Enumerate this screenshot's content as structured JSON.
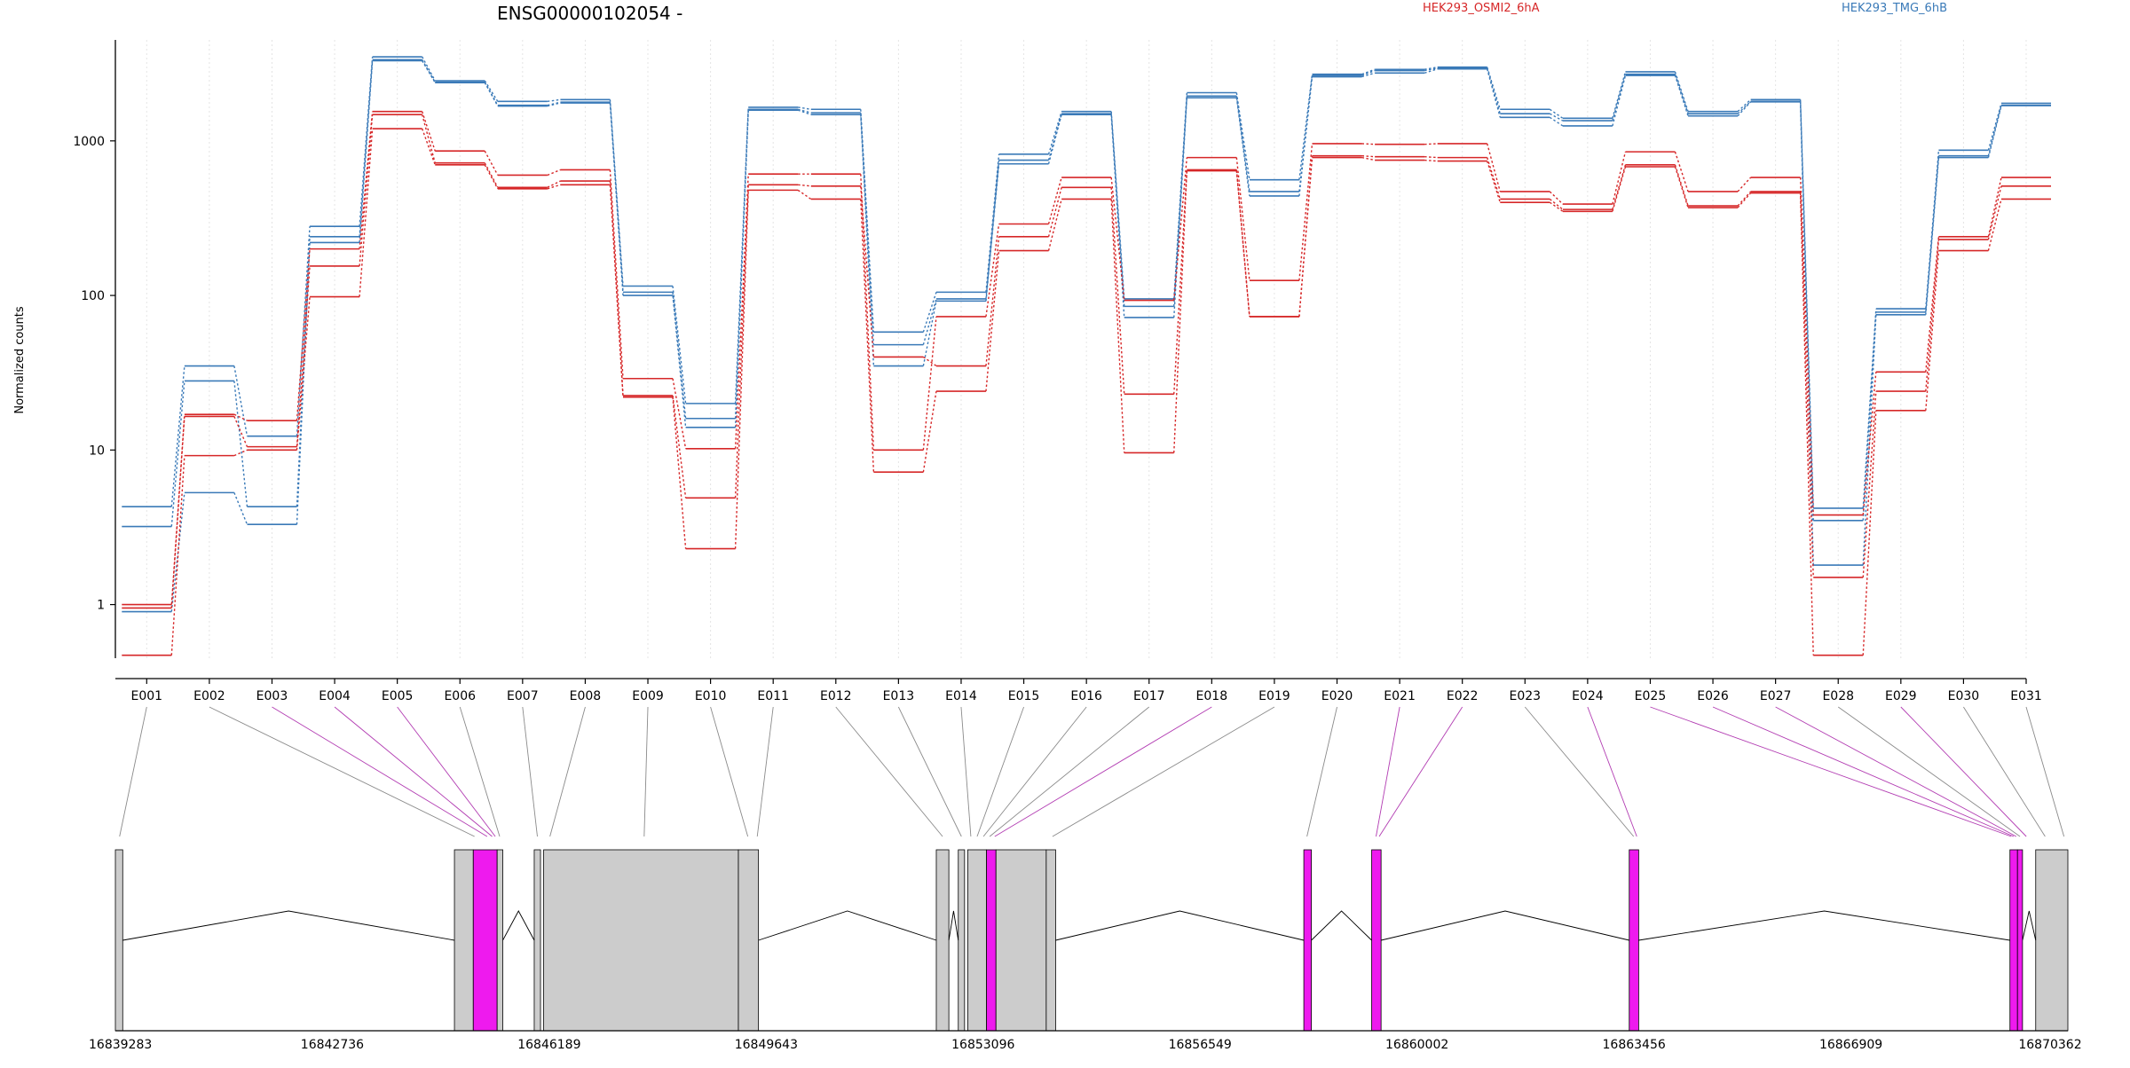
{
  "chart_data": {
    "type": "line",
    "title": "ENSG00000102054 -",
    "ylabel": "Normalized counts",
    "xlabel": "",
    "yscale": "log",
    "ylim": [
      0.45,
      4500
    ],
    "yticks": [
      1,
      10,
      100,
      1000
    ],
    "ytick_labels": [
      "1",
      "10",
      "100",
      "1000"
    ],
    "grid": "vertical dotted",
    "categories": [
      "E001",
      "E002",
      "E003",
      "E004",
      "E005",
      "E006",
      "E007",
      "E008",
      "E009",
      "E010",
      "E011",
      "E012",
      "E013",
      "E014",
      "E015",
      "E016",
      "E017",
      "E018",
      "E019",
      "E020",
      "E021",
      "E022",
      "E023",
      "E024",
      "E025",
      "E026",
      "E027",
      "E028",
      "E029",
      "E030",
      "E031"
    ],
    "legend": [
      {
        "name": "HEK293_OSMI2_6hA",
        "color": "#d62728"
      },
      {
        "name": "HEK293_TMG_6hB",
        "color": "#3a7ab8"
      }
    ],
    "series": [
      {
        "group": "HEK293_TMG_6hB",
        "color": "#3a7ab8",
        "values": [
          4.3,
          35,
          12.3,
          280,
          3500,
          2450,
          1800,
          1850,
          115,
          20,
          1650,
          1600,
          58,
          105,
          820,
          1550,
          95,
          2050,
          560,
          2700,
          2900,
          3000,
          1600,
          1400,
          2800,
          1550,
          1850,
          4.2,
          82,
          870,
          1750
        ]
      },
      {
        "group": "HEK293_TMG_6hB",
        "color": "#3a7ab8",
        "values": [
          3.2,
          28,
          4.3,
          240,
          3350,
          2400,
          1700,
          1780,
          105,
          16,
          1600,
          1520,
          48,
          95,
          750,
          1500,
          85,
          1950,
          470,
          2650,
          2850,
          2950,
          1500,
          1350,
          2700,
          1500,
          1800,
          3.5,
          78,
          800,
          1700
        ]
      },
      {
        "group": "HEK293_TMG_6hB",
        "color": "#3a7ab8",
        "values": [
          0.9,
          5.3,
          3.3,
          220,
          3300,
          2380,
          1680,
          1760,
          100,
          14,
          1580,
          1480,
          35,
          92,
          710,
          1480,
          72,
          1900,
          440,
          2600,
          2750,
          2920,
          1420,
          1250,
          2650,
          1450,
          1790,
          1.8,
          75,
          780,
          1690
        ]
      },
      {
        "group": "HEK293_OSMI2_6hA",
        "color": "#d62728",
        "values": [
          1.0,
          17,
          15.5,
          200,
          1550,
          860,
          600,
          650,
          29,
          10.2,
          610,
          610,
          10,
          73,
          290,
          580,
          93,
          780,
          125,
          960,
          950,
          960,
          470,
          390,
          850,
          470,
          580,
          3.8,
          32,
          240,
          580
        ]
      },
      {
        "group": "HEK293_OSMI2_6hA",
        "color": "#d62728",
        "values": [
          0.95,
          16.5,
          10.5,
          155,
          1480,
          720,
          500,
          550,
          22.5,
          4.9,
          520,
          510,
          40,
          35,
          240,
          500,
          23,
          650,
          73,
          800,
          790,
          780,
          420,
          360,
          700,
          380,
          470,
          1.5,
          24,
          230,
          510
        ]
      },
      {
        "group": "HEK293_OSMI2_6hA",
        "color": "#d62728",
        "values": [
          0.47,
          9.2,
          10,
          98,
          1200,
          700,
          490,
          520,
          22,
          2.3,
          480,
          420,
          7.2,
          24,
          195,
          420,
          9.6,
          640,
          73,
          780,
          750,
          740,
          400,
          350,
          680,
          370,
          460,
          0.47,
          18,
          195,
          420
        ]
      }
    ],
    "gene_model": {
      "genomic_ticks": [
        "16839283",
        "16842736",
        "16846189",
        "16849643",
        "16853096",
        "16856549",
        "16860002",
        "16863456",
        "16866909",
        "16870362"
      ],
      "genomic_start": 16839283,
      "genomic_end": 16870362,
      "highlight_color": "#ee1aee",
      "exon_color": "#cccccc",
      "highlighted_exons": [
        "E003",
        "E004",
        "E005",
        "E018",
        "E021",
        "E022",
        "E024",
        "E025",
        "E026",
        "E027",
        "E029"
      ]
    }
  }
}
